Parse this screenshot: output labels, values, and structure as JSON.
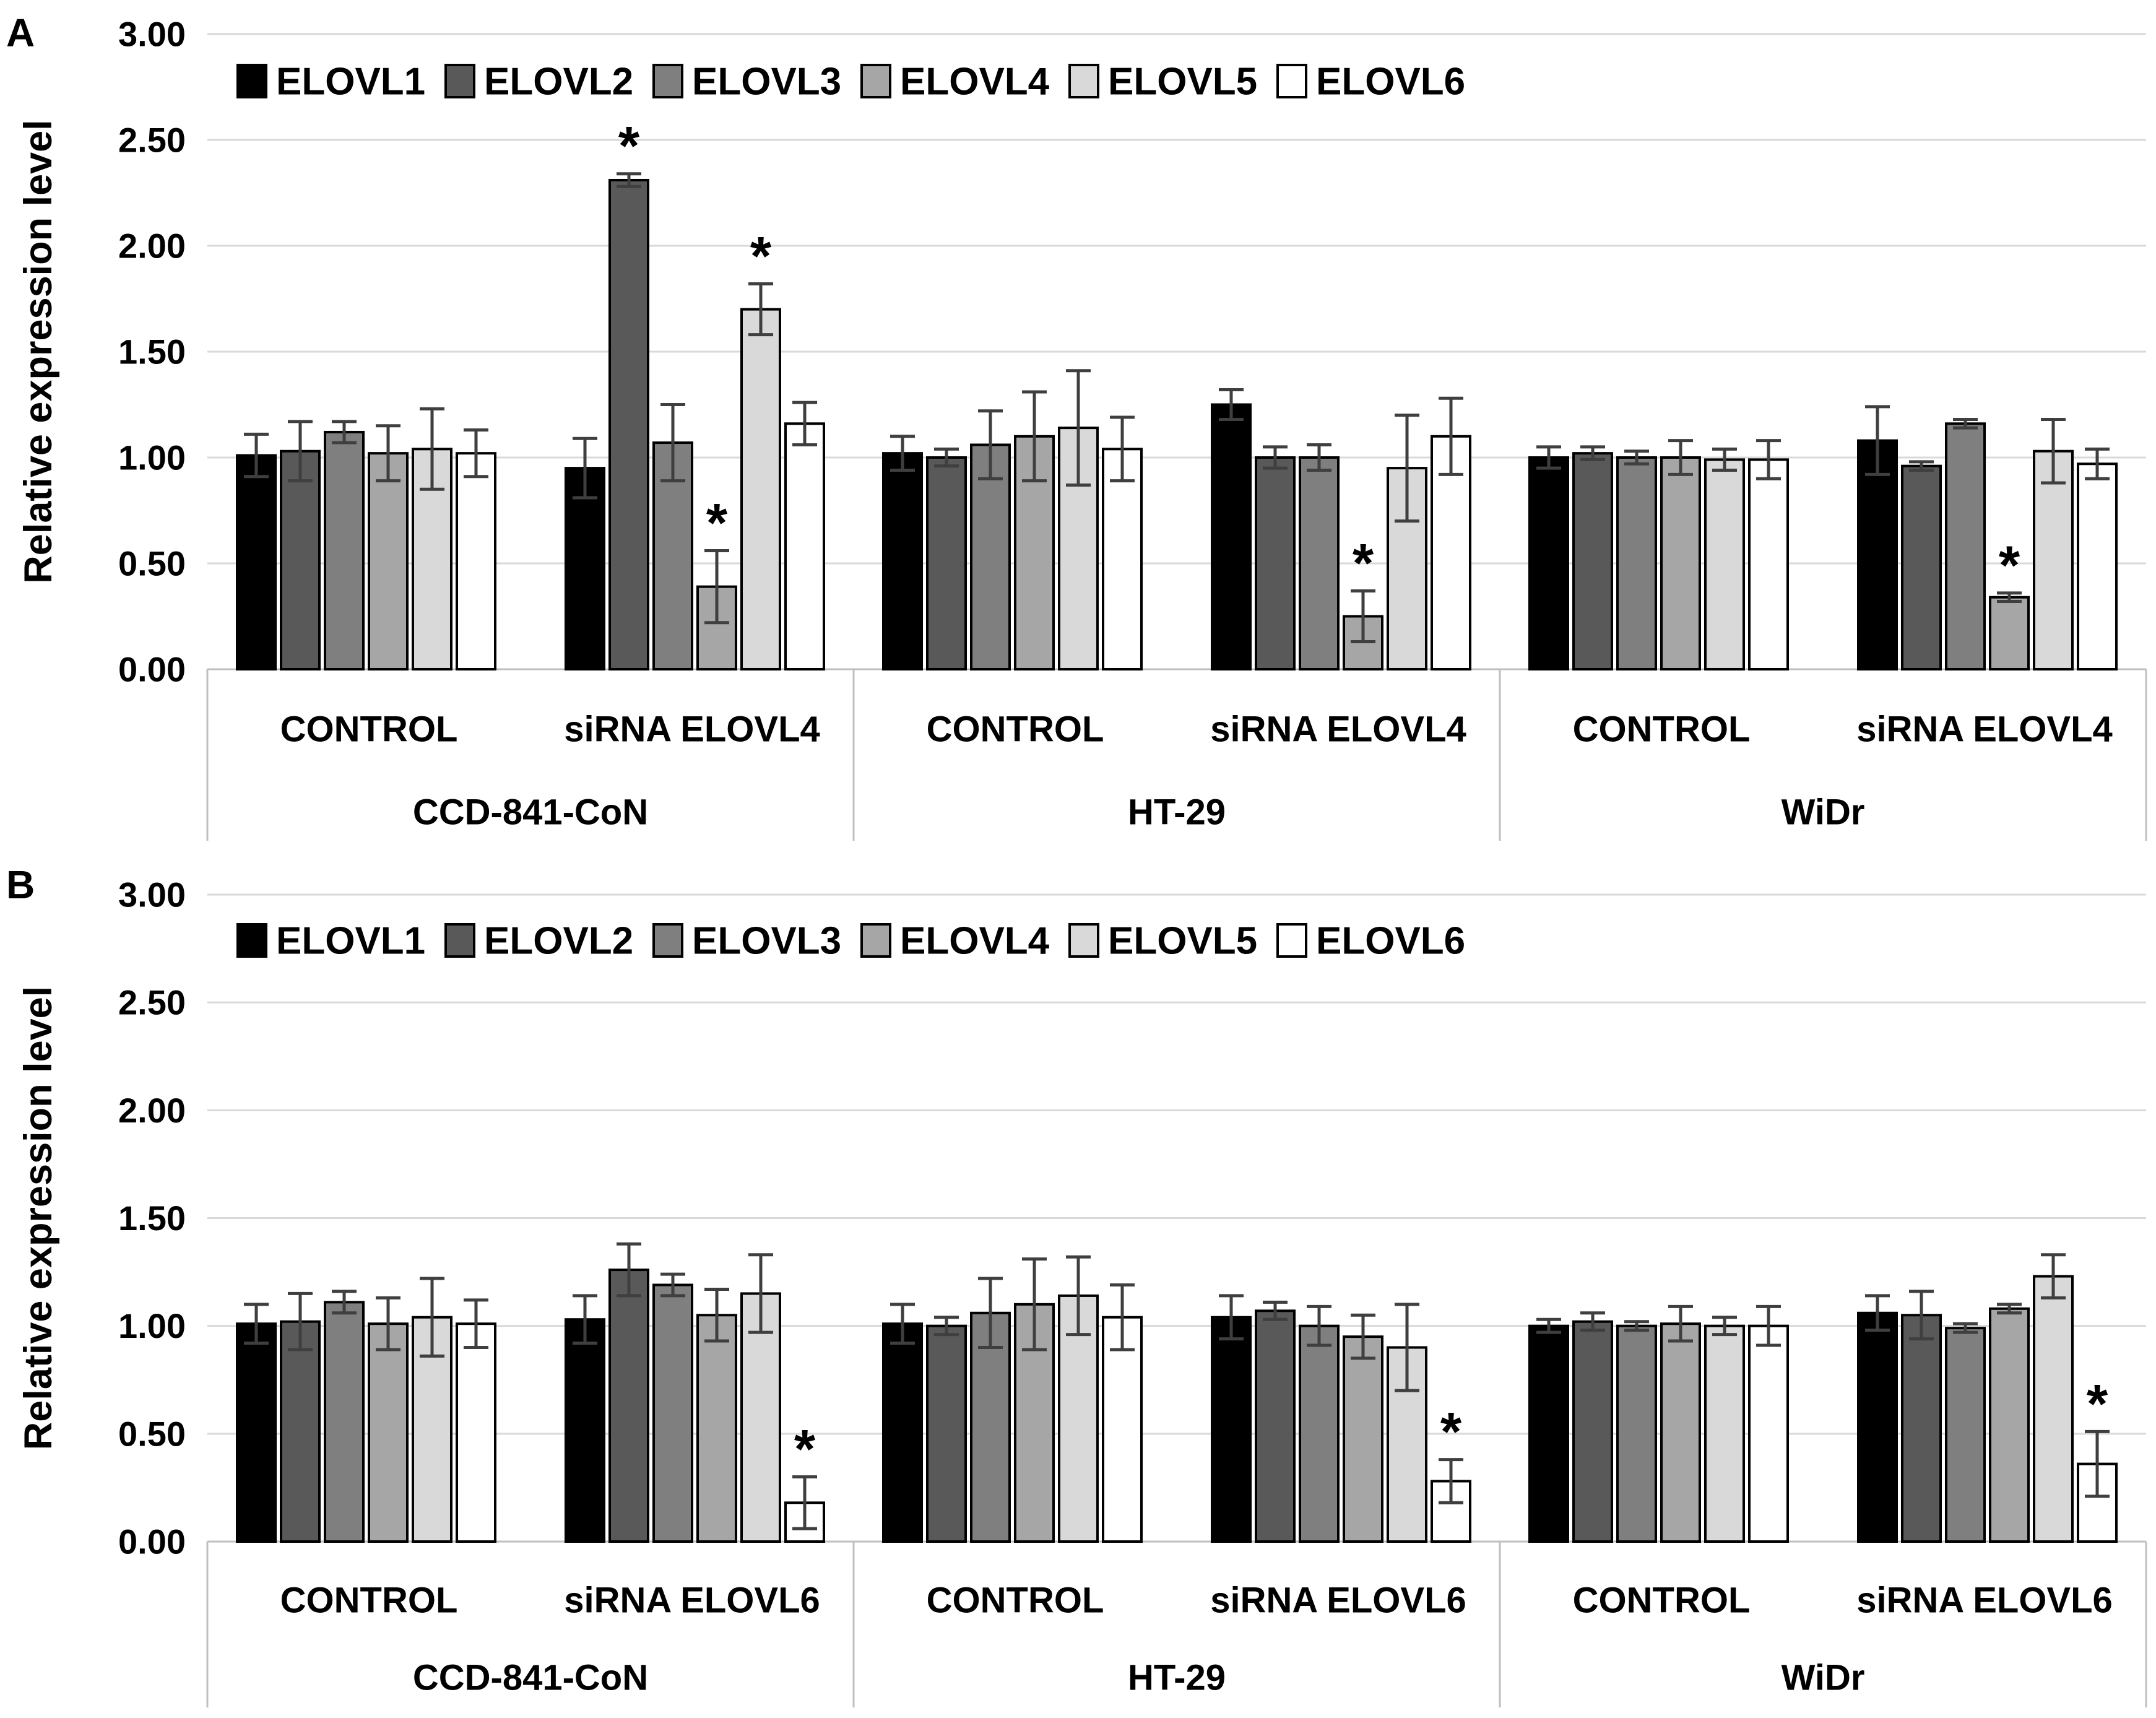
{
  "panels": [
    {
      "label": "A"
    },
    {
      "label": "B"
    }
  ],
  "sig_marker": "*",
  "y_axis": {
    "title": "Relative expression level",
    "ticks": [
      "3.00",
      "2.50",
      "2.00",
      "1.50",
      "1.00",
      "0.50",
      "0.00"
    ]
  },
  "legend": {
    "items": [
      {
        "label": "ELOVL1",
        "color": "#000000"
      },
      {
        "label": "ELOVL2",
        "color": "#595959"
      },
      {
        "label": "ELOVL3",
        "color": "#7f7f7f"
      },
      {
        "label": "ELOVL4",
        "color": "#a6a6a6"
      },
      {
        "label": "ELOVL5",
        "color": "#d9d9d9"
      },
      {
        "label": "ELOVL6",
        "color": "#ffffff"
      }
    ]
  },
  "cell_lines": [
    "CCD-841-CoN",
    "HT-29",
    "WiDr"
  ],
  "chart_data": [
    {
      "type": "bar",
      "panel": "A",
      "ylabel": "Relative expression level",
      "ylim": [
        0,
        3
      ],
      "ytick_step": 0.5,
      "grid": true,
      "legend_position": "top-inside",
      "series": [
        "ELOVL1",
        "ELOVL2",
        "ELOVL3",
        "ELOVL4",
        "ELOVL5",
        "ELOVL6"
      ],
      "colors": [
        "#000000",
        "#595959",
        "#7f7f7f",
        "#a6a6a6",
        "#d9d9d9",
        "#ffffff"
      ],
      "groups": [
        {
          "cell_line": "CCD-841-CoN",
          "condition": "CONTROL",
          "values": [
            1.01,
            1.03,
            1.12,
            1.02,
            1.04,
            1.02
          ],
          "errors": [
            0.1,
            0.14,
            0.05,
            0.13,
            0.19,
            0.11
          ],
          "significant": [
            false,
            false,
            false,
            false,
            false,
            false
          ]
        },
        {
          "cell_line": "CCD-841-CoN",
          "condition": "siRNA ELOVL4",
          "values": [
            0.95,
            2.31,
            1.07,
            0.39,
            1.7,
            1.16
          ],
          "errors": [
            0.14,
            0.03,
            0.18,
            0.17,
            0.12,
            0.1
          ],
          "significant": [
            false,
            true,
            false,
            true,
            true,
            false
          ]
        },
        {
          "cell_line": "HT-29",
          "condition": "CONTROL",
          "values": [
            1.02,
            1.0,
            1.06,
            1.1,
            1.14,
            1.04
          ],
          "errors": [
            0.08,
            0.04,
            0.16,
            0.21,
            0.27,
            0.15
          ],
          "significant": [
            false,
            false,
            false,
            false,
            false,
            false
          ]
        },
        {
          "cell_line": "HT-29",
          "condition": "siRNA ELOVL4",
          "values": [
            1.25,
            1.0,
            1.0,
            0.25,
            0.95,
            1.1
          ],
          "errors": [
            0.07,
            0.05,
            0.06,
            0.12,
            0.25,
            0.18
          ],
          "significant": [
            false,
            false,
            false,
            true,
            false,
            false
          ]
        },
        {
          "cell_line": "WiDr",
          "condition": "CONTROL",
          "values": [
            1.0,
            1.02,
            1.0,
            1.0,
            0.99,
            0.99
          ],
          "errors": [
            0.05,
            0.03,
            0.03,
            0.08,
            0.05,
            0.09
          ],
          "significant": [
            false,
            false,
            false,
            false,
            false,
            false
          ]
        },
        {
          "cell_line": "WiDr",
          "condition": "siRNA ELOVL4",
          "values": [
            1.08,
            0.96,
            1.16,
            0.34,
            1.03,
            0.97
          ],
          "errors": [
            0.16,
            0.02,
            0.02,
            0.02,
            0.15,
            0.07
          ],
          "significant": [
            false,
            false,
            false,
            true,
            false,
            false
          ]
        }
      ]
    },
    {
      "type": "bar",
      "panel": "B",
      "ylabel": "Relative expression level",
      "ylim": [
        0,
        3
      ],
      "ytick_step": 0.5,
      "grid": true,
      "legend_position": "top-inside",
      "series": [
        "ELOVL1",
        "ELOVL2",
        "ELOVL3",
        "ELOVL4",
        "ELOVL5",
        "ELOVL6"
      ],
      "colors": [
        "#000000",
        "#595959",
        "#7f7f7f",
        "#a6a6a6",
        "#d9d9d9",
        "#ffffff"
      ],
      "groups": [
        {
          "cell_line": "CCD-841-CoN",
          "condition": "CONTROL",
          "values": [
            1.01,
            1.02,
            1.11,
            1.01,
            1.04,
            1.01
          ],
          "errors": [
            0.09,
            0.13,
            0.05,
            0.12,
            0.18,
            0.11
          ],
          "significant": [
            false,
            false,
            false,
            false,
            false,
            false
          ]
        },
        {
          "cell_line": "CCD-841-CoN",
          "condition": "siRNA ELOVL6",
          "values": [
            1.03,
            1.26,
            1.19,
            1.05,
            1.15,
            0.18
          ],
          "errors": [
            0.11,
            0.12,
            0.05,
            0.12,
            0.18,
            0.12
          ],
          "significant": [
            false,
            false,
            false,
            false,
            false,
            true
          ]
        },
        {
          "cell_line": "HT-29",
          "condition": "CONTROL",
          "values": [
            1.01,
            1.0,
            1.06,
            1.1,
            1.14,
            1.04
          ],
          "errors": [
            0.09,
            0.04,
            0.16,
            0.21,
            0.18,
            0.15
          ],
          "significant": [
            false,
            false,
            false,
            false,
            false,
            false
          ]
        },
        {
          "cell_line": "HT-29",
          "condition": "siRNA ELOVL6",
          "values": [
            1.04,
            1.07,
            1.0,
            0.95,
            0.9,
            0.28
          ],
          "errors": [
            0.1,
            0.04,
            0.09,
            0.1,
            0.2,
            0.1
          ],
          "significant": [
            false,
            false,
            false,
            false,
            false,
            true
          ]
        },
        {
          "cell_line": "WiDr",
          "condition": "CONTROL",
          "values": [
            1.0,
            1.02,
            1.0,
            1.01,
            1.0,
            1.0
          ],
          "errors": [
            0.03,
            0.04,
            0.02,
            0.08,
            0.04,
            0.09
          ],
          "significant": [
            false,
            false,
            false,
            false,
            false,
            false
          ]
        },
        {
          "cell_line": "WiDr",
          "condition": "siRNA ELOVL6",
          "values": [
            1.06,
            1.05,
            0.99,
            1.08,
            1.23,
            0.36
          ],
          "errors": [
            0.08,
            0.11,
            0.02,
            0.02,
            0.1,
            0.15
          ],
          "significant": [
            false,
            false,
            false,
            false,
            false,
            true
          ]
        }
      ]
    }
  ]
}
